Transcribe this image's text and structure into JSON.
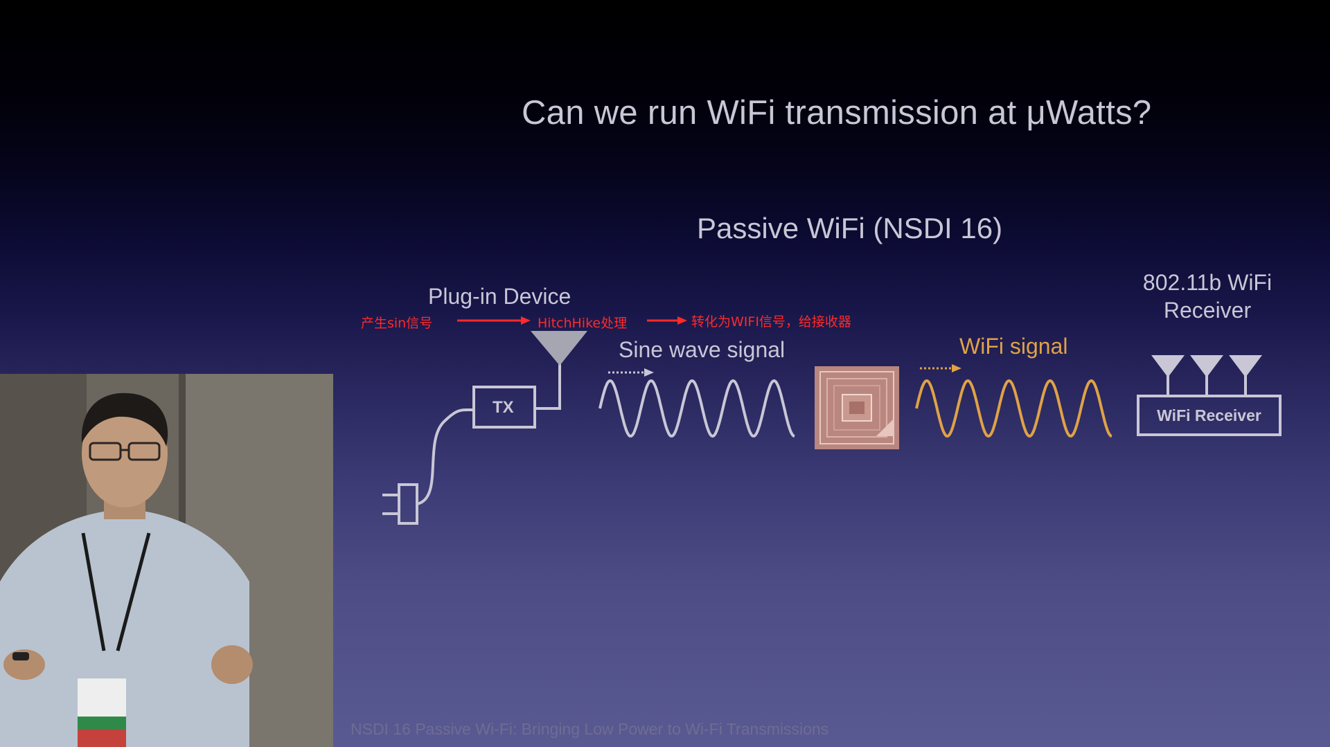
{
  "slide": {
    "title": "Can we run WiFi transmission at μWatts?",
    "subtitle": "Passive WiFi (NSDI 16)",
    "footer": "NSDI 16 Passive Wi-Fi: Bringing Low Power to Wi-Fi Transmissions"
  },
  "diagram": {
    "plugin_device_label": "Plug-in Device",
    "tx_label": "TX",
    "sine_wave_label": "Sine wave signal",
    "wifi_signal_label": "WiFi signal",
    "receiver_title_line1": "802.11b WiFi",
    "receiver_title_line2": "Receiver",
    "receiver_box_label": "WiFi Receiver"
  },
  "annotations": {
    "step1": "产生sin信号",
    "step2": "HitchHike处理",
    "step3": "转化为WIFI信号，给接收器"
  },
  "colors": {
    "annotation": "#ff2a2a",
    "wifi_signal": "#e0a247",
    "slide_text": "#c9c7d6"
  }
}
